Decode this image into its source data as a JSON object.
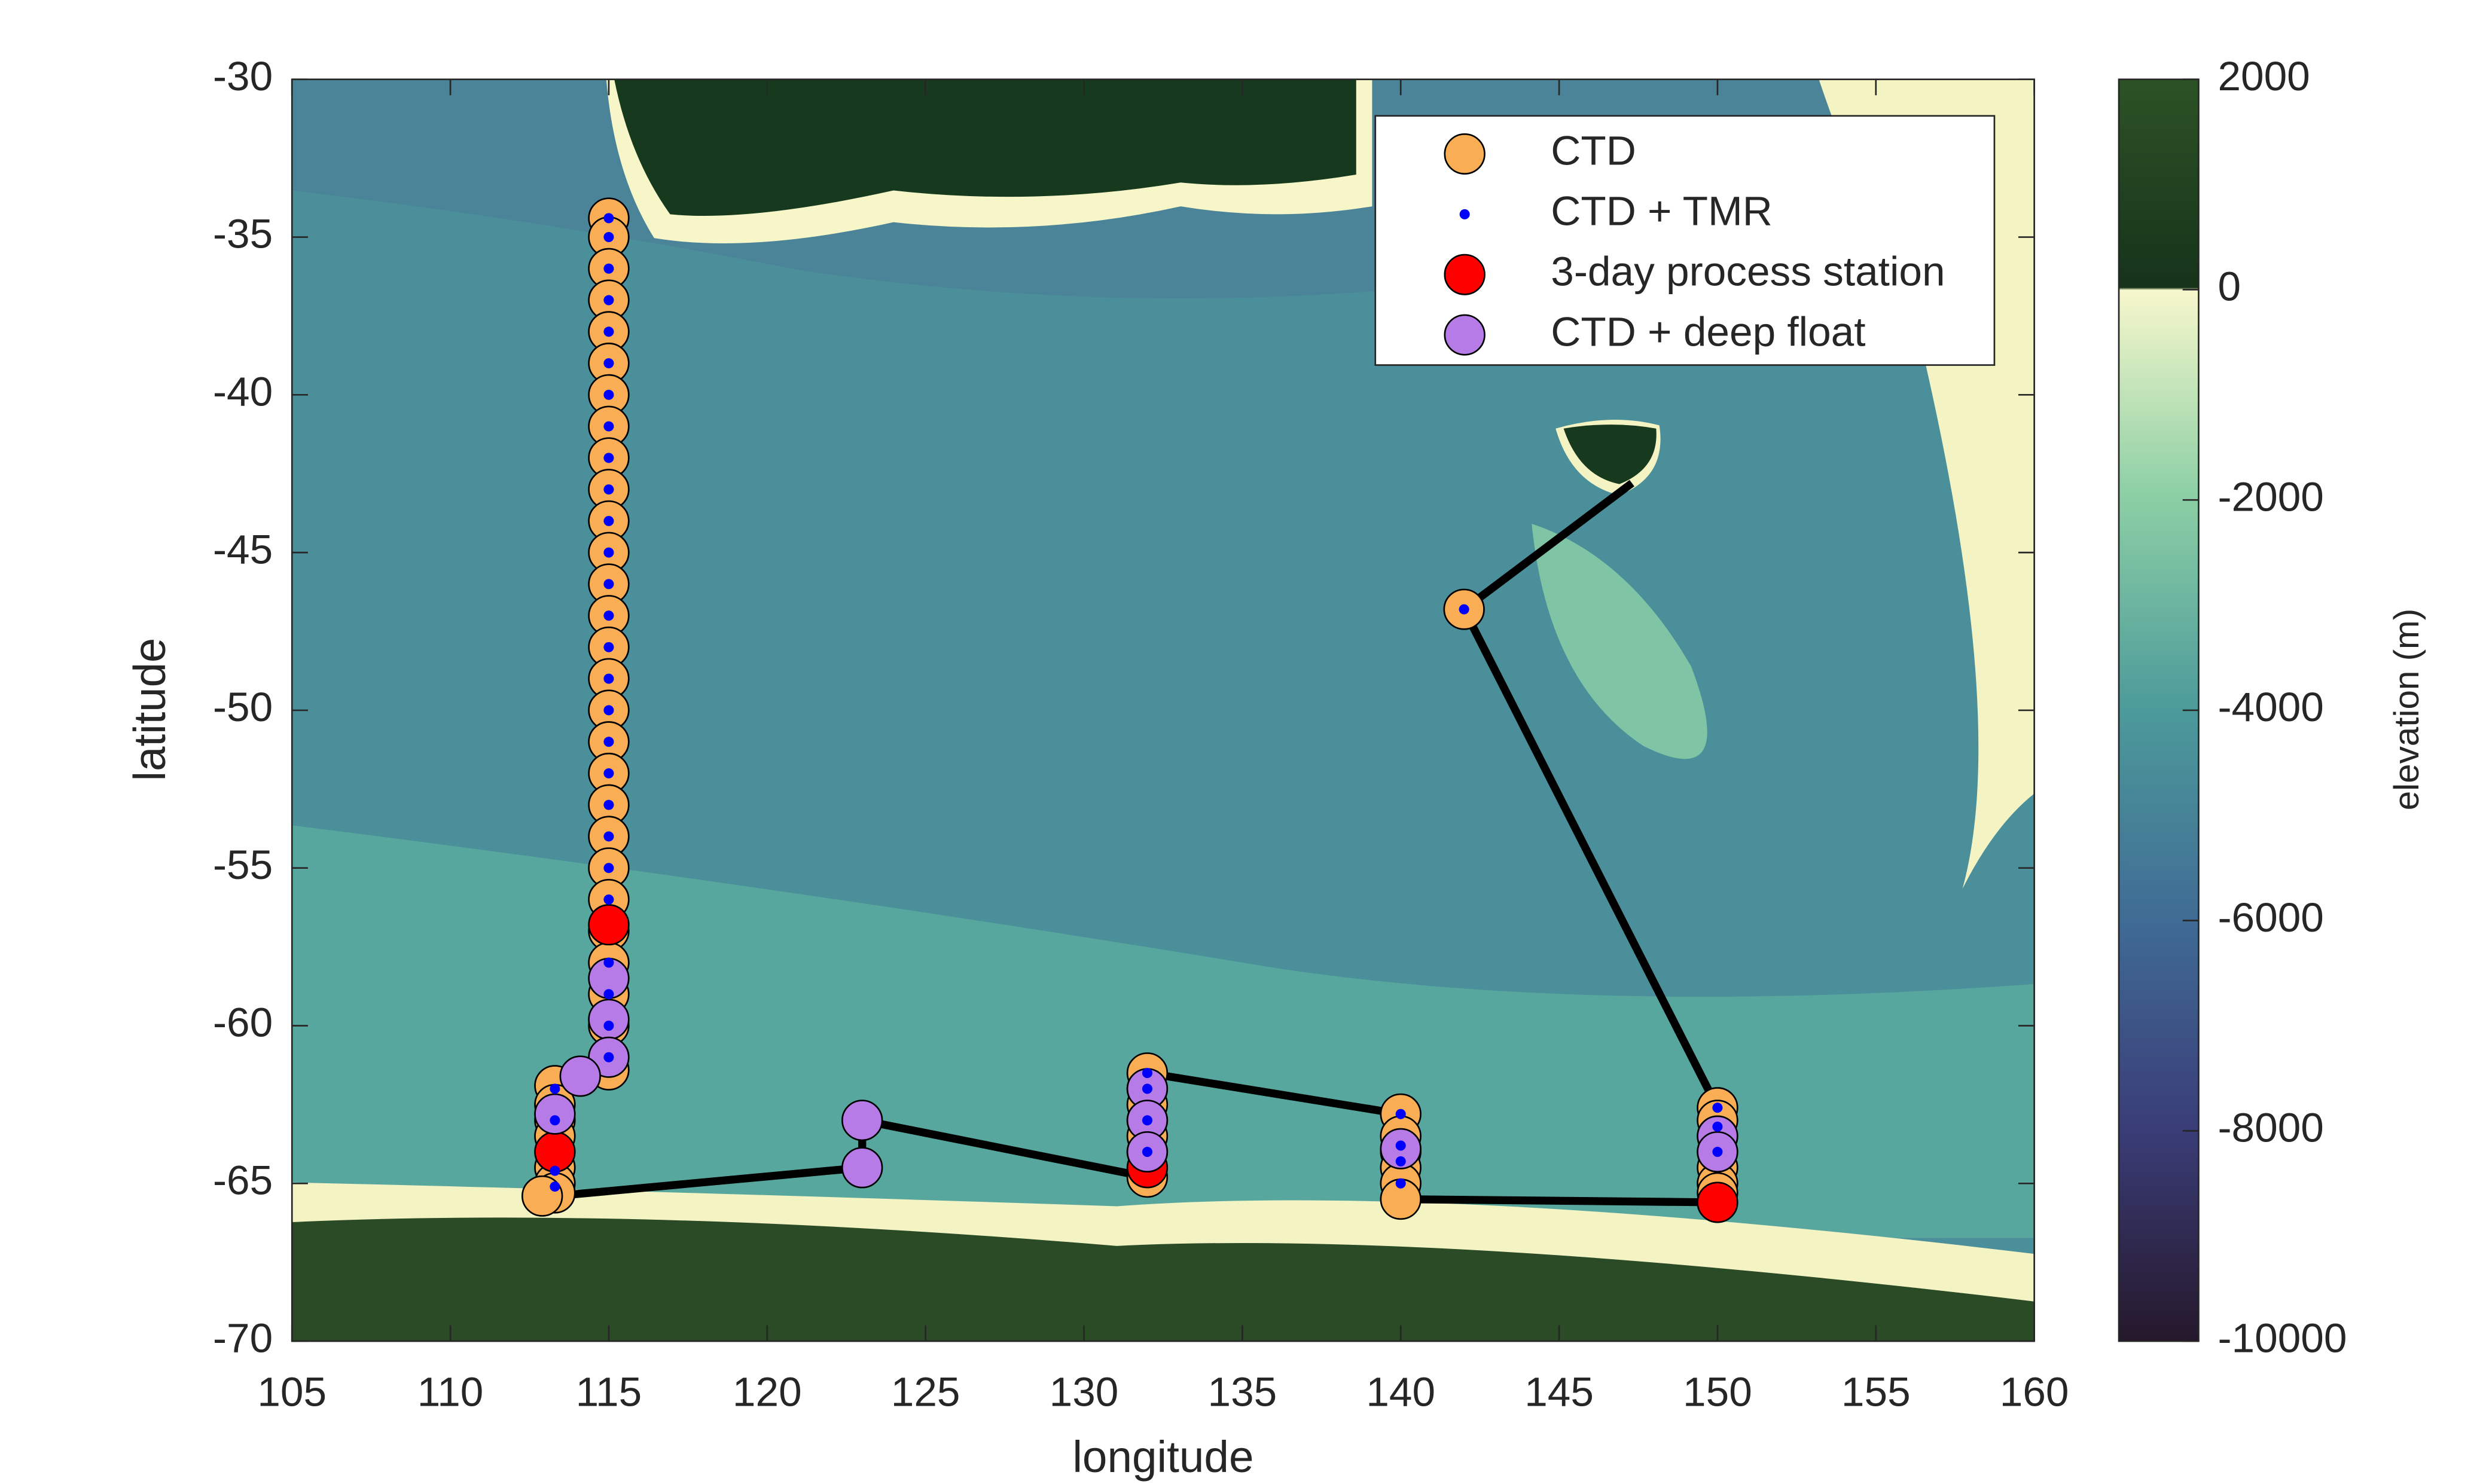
{
  "chart_data": {
    "type": "scatter",
    "x_label": "longitude",
    "y_label": "latitude",
    "xlim": [
      105,
      160
    ],
    "xticks": [
      105,
      110,
      115,
      120,
      125,
      130,
      135,
      140,
      145,
      150,
      155,
      160
    ],
    "ylim": [
      -70,
      -30
    ],
    "yticks": [
      -30,
      -35,
      -40,
      -45,
      -50,
      -55,
      -60,
      -65,
      -70
    ],
    "legend": "upper right",
    "colorbar": {
      "label": "elevation (m)",
      "lim": [
        -10000,
        2000
      ],
      "ticks": [
        2000,
        0,
        -2000,
        -4000,
        -6000,
        -8000,
        -10000
      ]
    },
    "track": {
      "color": "#000000",
      "x": [
        147.3,
        142,
        150,
        150,
        140,
        140,
        132,
        132,
        123,
        123,
        113.3
      ],
      "y": [
        -42.8,
        -46.8,
        -62.6,
        -65.6,
        -65.5,
        -62.8,
        -61.5,
        -64.8,
        -63,
        -64.5,
        -65.4
      ]
    },
    "series": [
      {
        "name": "CTD",
        "color": "#f9ad54",
        "marker": "circle",
        "x": [
          115,
          115,
          115,
          115,
          115,
          115,
          115,
          115,
          115,
          115,
          115,
          115,
          115,
          115,
          115,
          115,
          115,
          115,
          115,
          115,
          115,
          115,
          115,
          115,
          115,
          115,
          115,
          115,
          113.3,
          113.3,
          113.3,
          113.3,
          113.3,
          113.3,
          113.3,
          112.9,
          132,
          132,
          132,
          132,
          132,
          132,
          132,
          140,
          140,
          140,
          140,
          140,
          140,
          150,
          150,
          150,
          150,
          150,
          150,
          150,
          142
        ],
        "values": [
          -34.4,
          -35,
          -36,
          -37,
          -38,
          -39,
          -40,
          -41,
          -42,
          -43,
          -44,
          -45,
          -46,
          -47,
          -48,
          -49,
          -50,
          -51,
          -52,
          -53,
          -54,
          -55,
          -56,
          -57,
          -58,
          -59,
          -60,
          -61.4,
          -61.9,
          -62.5,
          -63,
          -63.5,
          -64.5,
          -65,
          -65.3,
          -65.4,
          -61.5,
          -62,
          -62.5,
          -63,
          -63.5,
          -64,
          -64.8,
          -62.8,
          -63.5,
          -64,
          -64.5,
          -65,
          -65.5,
          -62.6,
          -63,
          -63.5,
          -64,
          -64.5,
          -65,
          -65.3,
          -46.8
        ]
      },
      {
        "name": "CTD + TMR",
        "color": "#0000ff",
        "marker": "dot",
        "x": [
          115,
          115,
          115,
          115,
          115,
          115,
          115,
          115,
          115,
          115,
          115,
          115,
          115,
          115,
          115,
          115,
          115,
          115,
          115,
          115,
          115,
          115,
          115,
          115,
          115,
          115,
          115,
          113.3,
          113.3,
          113.3,
          113.3,
          132,
          132,
          132,
          132,
          140,
          140,
          140,
          140,
          150,
          150,
          150,
          142
        ],
        "values": [
          -34.4,
          -35,
          -36,
          -37,
          -38,
          -39,
          -40,
          -41,
          -42,
          -43,
          -44,
          -45,
          -46,
          -47,
          -48,
          -49,
          -50,
          -51,
          -52,
          -53,
          -54,
          -55,
          -56,
          -58,
          -59,
          -60,
          -61,
          -62,
          -63,
          -64.6,
          -65.1,
          -61.5,
          -62,
          -63,
          -64,
          -62.8,
          -63.8,
          -64.3,
          -65,
          -62.6,
          -63.2,
          -64,
          -46.8
        ]
      },
      {
        "name": "3-day process station",
        "color": "#ff0000",
        "marker": "circle",
        "x": [
          115,
          113.3,
          132,
          150
        ],
        "values": [
          -56.8,
          -64,
          -64.5,
          -65.6
        ]
      },
      {
        "name": "CTD + deep float",
        "color": "#b77be8",
        "marker": "circle",
        "x": [
          115,
          115,
          115,
          114.1,
          113.3,
          123,
          123,
          132,
          132,
          132,
          140,
          150,
          150
        ],
        "values": [
          -58.5,
          -59.8,
          -61,
          -61.6,
          -62.8,
          -63,
          -64.5,
          -62,
          -63,
          -64,
          -63.9,
          -63.5,
          -64
        ]
      }
    ]
  }
}
